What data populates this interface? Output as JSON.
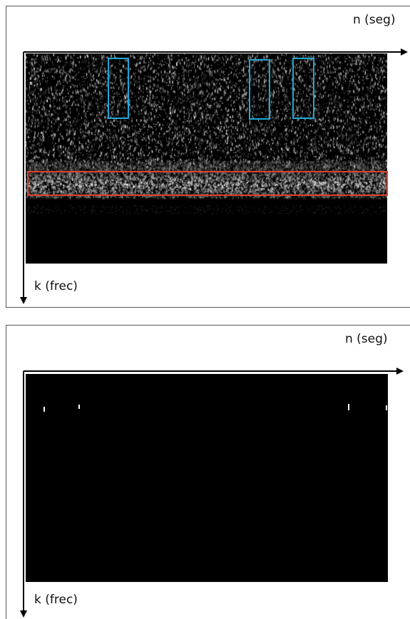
{
  "panels": [
    {
      "id": "top",
      "x_axis_label": "n (seg)",
      "y_axis_label": "k (frec)",
      "content": "noisy spectrogram",
      "highlights": {
        "band_color": "#e0402a",
        "column_color": "#1ea7d8",
        "band_count": 1,
        "column_count": 3
      }
    },
    {
      "id": "bottom",
      "x_axis_label": "n (seg)",
      "y_axis_label": "k (frec)",
      "content": "filtered spectrogram with four isolated detections"
    }
  ],
  "colors": {
    "background": "#ffffff",
    "spectrogram": "#000000",
    "axis": "#000000"
  }
}
